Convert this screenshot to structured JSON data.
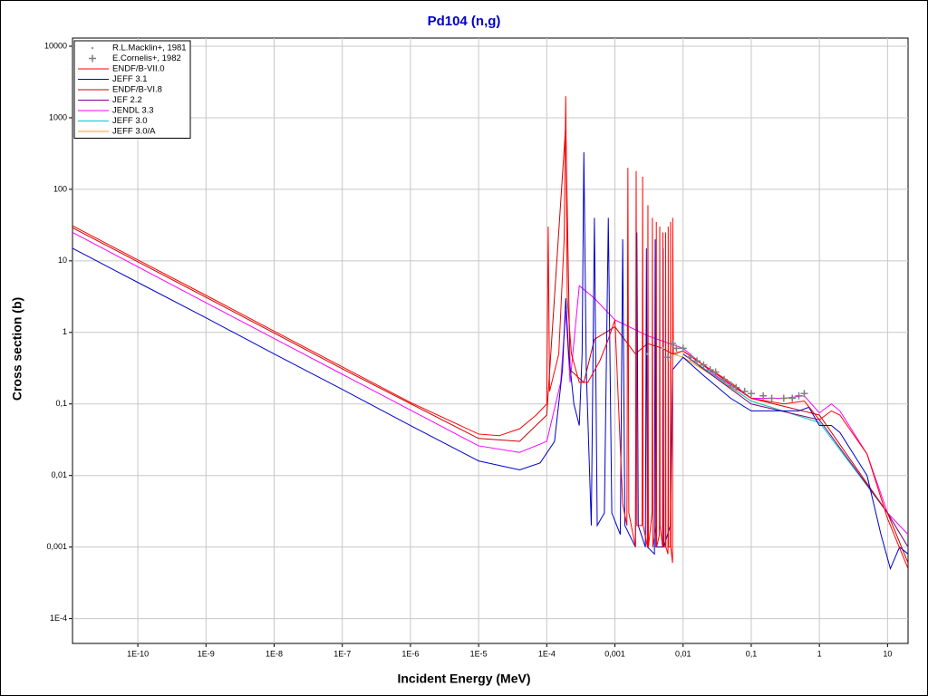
{
  "chart_data": {
    "type": "line",
    "title": "Pd104 (n,g)",
    "xlabel": "Incident Energy (MeV)",
    "ylabel": "Cross section (b)",
    "xscale": "log",
    "yscale": "log",
    "grid": true,
    "legend": "upper left",
    "xlim": [
      1.1e-11,
      20
    ],
    "ylim": [
      4.5e-05,
      13000
    ],
    "xticks": [
      {
        "value": 1e-10,
        "label": "1E-10"
      },
      {
        "value": 1e-09,
        "label": "1E-9"
      },
      {
        "value": 1e-08,
        "label": "1E-8"
      },
      {
        "value": 1e-07,
        "label": "1E-7"
      },
      {
        "value": 1e-06,
        "label": "1E-6"
      },
      {
        "value": 1e-05,
        "label": "1E-5"
      },
      {
        "value": 0.0001,
        "label": "1E-4"
      },
      {
        "value": 0.001,
        "label": "0,001"
      },
      {
        "value": 0.01,
        "label": "0,01"
      },
      {
        "value": 0.1,
        "label": "0,1"
      },
      1,
      10
    ],
    "yticks": [
      10000,
      1000,
      100,
      10,
      1,
      {
        "value": 0.1,
        "label": "0,1"
      },
      {
        "value": 0.01,
        "label": "0,01"
      },
      {
        "value": 0.001,
        "label": "0,001"
      },
      {
        "value": 0.0001,
        "label": "1E-4"
      }
    ],
    "series": [
      {
        "name": "R.L.Macklin+, 1981",
        "color": "#a0a0a0",
        "marker": "dot",
        "x": [
          0.003,
          0.005,
          0.008,
          0.012,
          0.02,
          0.03,
          0.05
        ],
        "values": [
          0.5,
          0.6,
          0.5,
          0.45,
          0.35,
          0.28,
          0.2
        ]
      },
      {
        "name": "E.Cornelis+, 1982",
        "color": "#808080",
        "marker": "plus",
        "x": [
          0.006,
          0.007,
          0.008,
          0.01,
          0.013,
          0.016,
          0.02,
          0.025,
          0.03,
          0.04,
          0.05,
          0.06,
          0.08,
          0.1,
          0.15,
          0.2,
          0.3,
          0.4,
          0.5,
          0.6
        ],
        "values": [
          0.45,
          0.7,
          0.6,
          0.6,
          0.45,
          0.4,
          0.35,
          0.3,
          0.28,
          0.22,
          0.18,
          0.17,
          0.15,
          0.14,
          0.13,
          0.12,
          0.12,
          0.12,
          0.13,
          0.14
        ]
      },
      {
        "name": "ENDF/B-VII.0",
        "color": "#ff0000",
        "x": [
          1.1e-11,
          1e-10,
          1e-09,
          1e-08,
          1e-07,
          1e-06,
          1e-05,
          2e-05,
          4e-05,
          7e-05,
          0.0001,
          0.000105,
          0.00011,
          0.00015,
          0.00018,
          0.00019,
          0.0002,
          0.00023,
          0.0003,
          0.0004,
          0.0006,
          0.0008,
          0.001,
          0.0013,
          0.0015,
          0.00155,
          0.0016,
          0.002,
          0.00205,
          0.0021,
          0.0025,
          0.00255,
          0.0026,
          0.003,
          0.00305,
          0.0031,
          0.0035,
          0.00355,
          0.0036,
          0.004,
          0.00405,
          0.0041,
          0.0045,
          0.00455,
          0.0046,
          0.005,
          0.00505,
          0.0051,
          0.0055,
          0.00555,
          0.0056,
          0.006,
          0.00605,
          0.0061,
          0.0065,
          0.00655,
          0.0066,
          0.007,
          0.00705,
          0.0072,
          0.01,
          0.02,
          0.05,
          0.1,
          0.3,
          0.6,
          1,
          1.5,
          2,
          5,
          10,
          20
        ],
        "values": [
          31,
          10.3,
          3.3,
          1.04,
          0.33,
          0.105,
          0.038,
          0.036,
          0.045,
          0.07,
          0.1,
          30,
          0.15,
          0.5,
          20,
          2000,
          3,
          0.5,
          0.2,
          0.2,
          0.4,
          0.8,
          1.5,
          0.004,
          0.002,
          200,
          0.003,
          0.001,
          180,
          0.002,
          0.002,
          150,
          0.002,
          0.001,
          60,
          0.001,
          0.003,
          40,
          0.001,
          0.002,
          35,
          0.001,
          0.0015,
          30,
          0.002,
          0.001,
          25,
          0.001,
          0.001,
          25,
          0.001,
          0.0008,
          30,
          0.001,
          0.001,
          35,
          0.001,
          0.0006,
          40,
          0.5,
          0.55,
          0.35,
          0.2,
          0.12,
          0.1,
          0.11,
          0.06,
          0.08,
          0.07,
          0.02,
          0.0025,
          0.0005
        ]
      },
      {
        "name": "JEFF 3.1",
        "color": "#0000cc",
        "x": [
          1.1e-11,
          1e-10,
          1e-09,
          1e-08,
          1e-07,
          1e-06,
          1e-05,
          4e-05,
          8e-05,
          0.00013,
          0.00017,
          0.00019,
          0.00021,
          0.00025,
          0.0003,
          0.00033,
          0.00035,
          0.00038,
          0.00045,
          0.0005,
          0.00055,
          0.0007,
          0.0008,
          0.0009,
          0.0012,
          0.0013,
          0.0014,
          0.002,
          0.0021,
          0.0022,
          0.0028,
          0.0029,
          0.003,
          0.0038,
          0.0039,
          0.004,
          0.005,
          0.0051,
          0.0052,
          0.0065,
          0.007,
          0.01,
          0.02,
          0.05,
          0.1,
          0.5,
          0.7,
          1,
          1.5,
          2,
          5,
          8,
          11,
          15,
          20
        ],
        "values": [
          15,
          5,
          1.6,
          0.5,
          0.16,
          0.05,
          0.016,
          0.012,
          0.015,
          0.03,
          0.3,
          3,
          0.5,
          0.1,
          0.05,
          0.5,
          330,
          0.3,
          0.002,
          40,
          0.002,
          0.003,
          40,
          0.003,
          0.0015,
          20,
          0.002,
          0.001,
          25,
          0.002,
          0.001,
          15,
          0.001,
          0.0008,
          20,
          0.001,
          0.001,
          15,
          0.001,
          0.002,
          0.3,
          0.45,
          0.25,
          0.12,
          0.08,
          0.08,
          0.09,
          0.05,
          0.05,
          0.04,
          0.01,
          0.0015,
          0.0005,
          0.001,
          0.0008
        ]
      },
      {
        "name": "ENDF/B-VI.8",
        "color": "#cc0000",
        "x": [
          1.1e-11,
          1e-09,
          1e-07,
          1e-05,
          4e-05,
          0.0001,
          0.00019,
          0.00022,
          0.00035,
          0.0005,
          0.001,
          0.002,
          0.003,
          0.005,
          0.007,
          0.01,
          0.1,
          1,
          10,
          20
        ],
        "values": [
          29,
          3.1,
          0.31,
          0.033,
          0.03,
          0.07,
          800,
          0.3,
          0.2,
          0.8,
          1.2,
          0.5,
          0.7,
          0.6,
          0.5,
          0.55,
          0.12,
          0.07,
          0.003,
          0.0006
        ]
      },
      {
        "name": "JEF 2.2",
        "color": "#800080",
        "x": [
          0.01,
          0.1,
          1,
          10,
          20
        ],
        "values": [
          0.5,
          0.1,
          0.06,
          0.003,
          0.001
        ]
      },
      {
        "name": "JENDL 3.3",
        "color": "#ff00ff",
        "x": [
          1.1e-11,
          1e-09,
          1e-07,
          1e-05,
          4e-05,
          0.0001,
          0.00016,
          0.00019,
          0.00022,
          0.0003,
          0.0005,
          0.001,
          0.003,
          0.01,
          0.03,
          0.1,
          0.3,
          0.6,
          1,
          1.5,
          2,
          5,
          10,
          20
        ],
        "values": [
          25,
          2.6,
          0.26,
          0.026,
          0.021,
          0.03,
          0.2,
          2,
          0.2,
          4.5,
          3,
          1.5,
          0.9,
          0.6,
          0.25,
          0.12,
          0.12,
          0.13,
          0.075,
          0.1,
          0.08,
          0.02,
          0.003,
          0.0015
        ]
      },
      {
        "name": "JEFF 3.0",
        "color": "#00cccc",
        "x": [
          0.01,
          0.1,
          1,
          10,
          20
        ],
        "values": [
          0.5,
          0.11,
          0.055,
          0.003,
          0.001
        ]
      },
      {
        "name": "JEFF 3.0/A",
        "color": "#ffa000",
        "x": [
          0.007,
          0.01,
          0.02,
          0.1,
          1
        ],
        "values": [
          0.5,
          0.45,
          0.3,
          0.11,
          0.055
        ]
      }
    ]
  }
}
